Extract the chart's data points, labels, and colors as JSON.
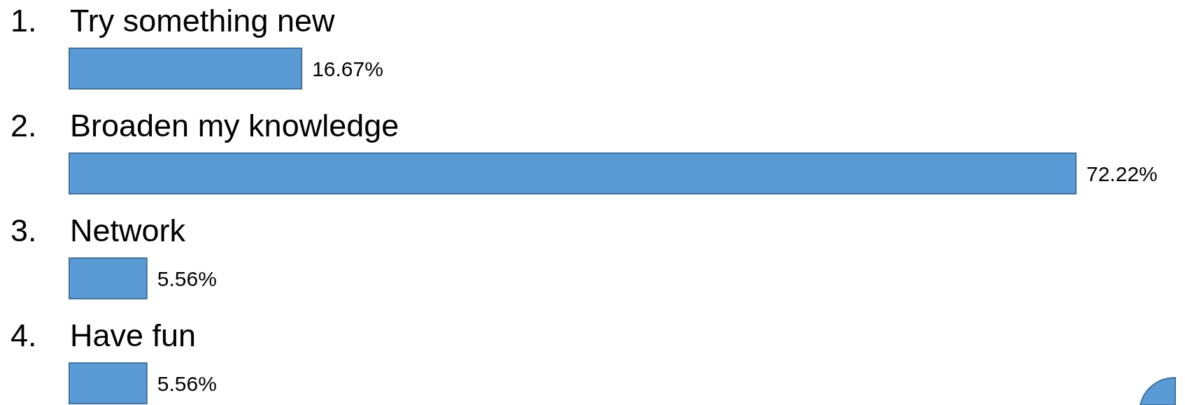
{
  "chart_data": {
    "type": "bar",
    "orientation": "horizontal",
    "categories": [
      "1. Try something new",
      "2. Broaden my knowledge",
      "3. Network",
      "4. Have fun"
    ],
    "values": [
      16.67,
      72.22,
      5.56,
      5.56
    ],
    "value_labels": [
      "16.67%",
      "72.22%",
      "5.56%",
      "5.56%"
    ],
    "color": "#5b9bd5"
  }
}
